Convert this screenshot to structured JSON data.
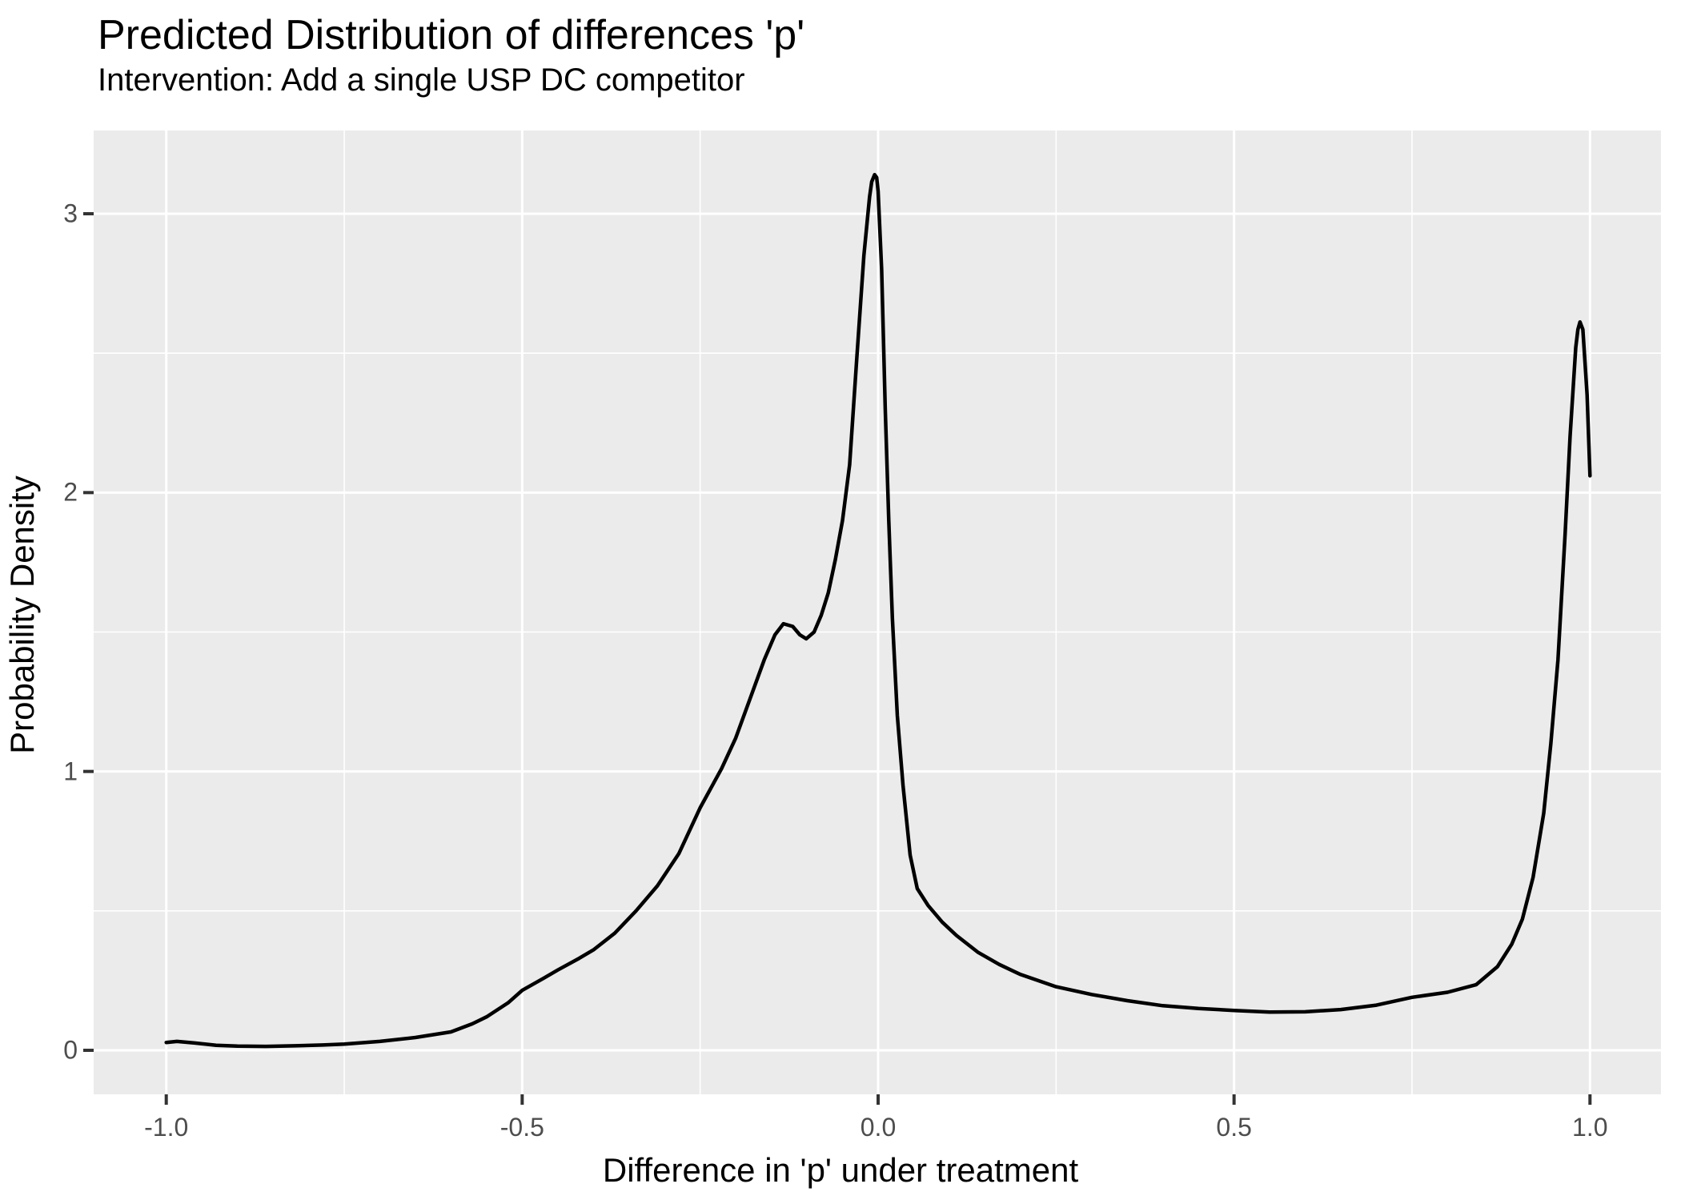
{
  "header": {
    "title": "Predicted Distribution of differences 'p'",
    "subtitle": "Intervention: Add a single USP DC competitor"
  },
  "chart_data": {
    "type": "line",
    "title": "Predicted Distribution of differences 'p'",
    "subtitle": "Intervention: Add a single USP DC competitor",
    "xlabel": "Difference in 'p' under treatment",
    "ylabel": "Probability Density",
    "x_ticks": [
      -1.0,
      -0.5,
      0.0,
      0.5,
      1.0
    ],
    "x_tick_labels": [
      "-1.0",
      "-0.5",
      "0.0",
      "0.5",
      "1.0"
    ],
    "y_ticks": [
      0,
      1,
      2,
      3
    ],
    "y_tick_labels": [
      "0",
      "1",
      "2",
      "3"
    ],
    "x_minor_ticks": [
      -0.75,
      -0.25,
      0.25,
      0.75
    ],
    "y_minor_ticks": [
      0.5,
      1.5,
      2.5
    ],
    "xlim": [
      -1.102,
      1.1
    ],
    "ylim": [
      -0.158,
      3.3
    ],
    "grid": "on",
    "legend": "none",
    "style": {
      "panel_background": "#EBEBEB",
      "grid_color": "#FFFFFF",
      "line_color": "#000000",
      "tick_mark_color": "#333333",
      "tick_label_color": "#4D4D4D",
      "title_color": "#000000",
      "line_width": 4.5
    },
    "series": [
      {
        "name": "density",
        "points": [
          [
            -1.0,
            0.028
          ],
          [
            -0.985,
            0.032
          ],
          [
            -0.96,
            0.026
          ],
          [
            -0.93,
            0.018
          ],
          [
            -0.9,
            0.015
          ],
          [
            -0.86,
            0.014
          ],
          [
            -0.82,
            0.016
          ],
          [
            -0.78,
            0.019
          ],
          [
            -0.75,
            0.022
          ],
          [
            -0.7,
            0.032
          ],
          [
            -0.65,
            0.046
          ],
          [
            -0.6,
            0.066
          ],
          [
            -0.57,
            0.095
          ],
          [
            -0.55,
            0.12
          ],
          [
            -0.52,
            0.17
          ],
          [
            -0.5,
            0.215
          ],
          [
            -0.47,
            0.258
          ],
          [
            -0.45,
            0.288
          ],
          [
            -0.42,
            0.33
          ],
          [
            -0.4,
            0.36
          ],
          [
            -0.37,
            0.42
          ],
          [
            -0.34,
            0.5
          ],
          [
            -0.31,
            0.59
          ],
          [
            -0.28,
            0.705
          ],
          [
            -0.25,
            0.87
          ],
          [
            -0.22,
            1.01
          ],
          [
            -0.2,
            1.12
          ],
          [
            -0.18,
            1.26
          ],
          [
            -0.16,
            1.4
          ],
          [
            -0.145,
            1.49
          ],
          [
            -0.133,
            1.53
          ],
          [
            -0.12,
            1.52
          ],
          [
            -0.11,
            1.49
          ],
          [
            -0.101,
            1.476
          ],
          [
            -0.09,
            1.5
          ],
          [
            -0.08,
            1.56
          ],
          [
            -0.07,
            1.64
          ],
          [
            -0.06,
            1.76
          ],
          [
            -0.05,
            1.9
          ],
          [
            -0.04,
            2.1
          ],
          [
            -0.03,
            2.48
          ],
          [
            -0.02,
            2.85
          ],
          [
            -0.012,
            3.06
          ],
          [
            -0.009,
            3.115
          ],
          [
            -0.005,
            3.14
          ],
          [
            -0.002,
            3.13
          ],
          [
            0.0,
            3.08
          ],
          [
            0.005,
            2.8
          ],
          [
            0.01,
            2.3
          ],
          [
            0.015,
            1.9
          ],
          [
            0.02,
            1.55
          ],
          [
            0.027,
            1.2
          ],
          [
            0.035,
            0.95
          ],
          [
            0.045,
            0.7
          ],
          [
            0.055,
            0.58
          ],
          [
            0.07,
            0.52
          ],
          [
            0.09,
            0.46
          ],
          [
            0.11,
            0.412
          ],
          [
            0.14,
            0.352
          ],
          [
            0.17,
            0.308
          ],
          [
            0.2,
            0.272
          ],
          [
            0.25,
            0.228
          ],
          [
            0.3,
            0.2
          ],
          [
            0.35,
            0.178
          ],
          [
            0.4,
            0.16
          ],
          [
            0.45,
            0.15
          ],
          [
            0.5,
            0.143
          ],
          [
            0.55,
            0.137
          ],
          [
            0.6,
            0.138
          ],
          [
            0.65,
            0.146
          ],
          [
            0.7,
            0.162
          ],
          [
            0.75,
            0.19
          ],
          [
            0.8,
            0.208
          ],
          [
            0.84,
            0.235
          ],
          [
            0.87,
            0.3
          ],
          [
            0.89,
            0.38
          ],
          [
            0.905,
            0.47
          ],
          [
            0.92,
            0.62
          ],
          [
            0.935,
            0.85
          ],
          [
            0.945,
            1.1
          ],
          [
            0.955,
            1.4
          ],
          [
            0.965,
            1.85
          ],
          [
            0.972,
            2.2
          ],
          [
            0.98,
            2.52
          ],
          [
            0.983,
            2.585
          ],
          [
            0.986,
            2.612
          ],
          [
            0.99,
            2.585
          ],
          [
            0.996,
            2.35
          ],
          [
            1.0,
            2.06
          ]
        ]
      }
    ],
    "annotations": {
      "main_peak": {
        "x": -0.005,
        "density": 3.14
      },
      "shoulder_peak": {
        "x": -0.133,
        "density": 1.53
      },
      "right_peak": {
        "x": 0.986,
        "density": 2.61
      },
      "valley_min": {
        "x": 0.55,
        "density": 0.137
      }
    }
  }
}
